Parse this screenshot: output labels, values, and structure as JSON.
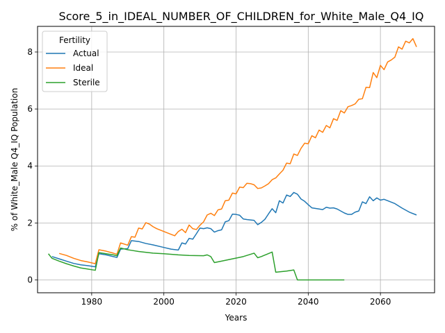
{
  "chart_data": {
    "type": "line",
    "title": "Score_5_in_IDEAL_NUMBER_OF_CHILDREN_for_White_Male_Q4_IQ",
    "xlabel": "Years",
    "ylabel": "% of White_Male Q4_IQ Population",
    "xlim": [
      1965,
      2075
    ],
    "ylim": [
      -0.45,
      8.9
    ],
    "xticks": [
      1980,
      2000,
      2020,
      2040,
      2060
    ],
    "yticks": [
      0,
      2,
      4,
      6,
      8
    ],
    "grid": true,
    "legend": {
      "title": "Fertility",
      "placement": "top-left"
    },
    "series": [
      {
        "name": "Actual",
        "color": "#1f77b4",
        "points": [
          [
            1969,
            0.82
          ],
          [
            1971,
            0.74
          ],
          [
            1973,
            0.66
          ],
          [
            1975,
            0.58
          ],
          [
            1977,
            0.53
          ],
          [
            1979,
            0.5
          ],
          [
            1981,
            0.46
          ],
          [
            1982,
            0.92
          ],
          [
            1984,
            0.88
          ],
          [
            1986,
            0.82
          ],
          [
            1987,
            0.79
          ],
          [
            1988,
            1.08
          ],
          [
            1990,
            1.1
          ],
          [
            1991,
            1.38
          ],
          [
            1993,
            1.35
          ],
          [
            1995,
            1.28
          ],
          [
            1997,
            1.23
          ],
          [
            2000,
            1.14
          ],
          [
            2002,
            1.08
          ],
          [
            2004,
            1.05
          ],
          [
            2005,
            1.3
          ],
          [
            2006,
            1.26
          ],
          [
            2007,
            1.46
          ],
          [
            2008,
            1.43
          ],
          [
            2009,
            1.62
          ],
          [
            2010,
            1.82
          ],
          [
            2011,
            1.8
          ],
          [
            2012,
            1.83
          ],
          [
            2013,
            1.8
          ],
          [
            2014,
            1.68
          ],
          [
            2015,
            1.73
          ],
          [
            2016,
            1.76
          ],
          [
            2017,
            2.04
          ],
          [
            2018,
            2.08
          ],
          [
            2019,
            2.31
          ],
          [
            2020,
            2.3
          ],
          [
            2021,
            2.27
          ],
          [
            2022,
            2.14
          ],
          [
            2023,
            2.12
          ],
          [
            2025,
            2.09
          ],
          [
            2026,
            1.94
          ],
          [
            2027,
            2.02
          ],
          [
            2028,
            2.13
          ],
          [
            2029,
            2.32
          ],
          [
            2030,
            2.5
          ],
          [
            2031,
            2.36
          ],
          [
            2032,
            2.78
          ],
          [
            2033,
            2.7
          ],
          [
            2034,
            2.98
          ],
          [
            2035,
            2.93
          ],
          [
            2036,
            3.07
          ],
          [
            2037,
            3.01
          ],
          [
            2038,
            2.84
          ],
          [
            2039,
            2.76
          ],
          [
            2040,
            2.64
          ],
          [
            2041,
            2.53
          ],
          [
            2043,
            2.49
          ],
          [
            2044,
            2.47
          ],
          [
            2045,
            2.55
          ],
          [
            2046,
            2.52
          ],
          [
            2047,
            2.53
          ],
          [
            2048,
            2.49
          ],
          [
            2049,
            2.42
          ],
          [
            2050,
            2.35
          ],
          [
            2051,
            2.3
          ],
          [
            2052,
            2.3
          ],
          [
            2053,
            2.38
          ],
          [
            2054,
            2.42
          ],
          [
            2055,
            2.74
          ],
          [
            2056,
            2.68
          ],
          [
            2057,
            2.92
          ],
          [
            2058,
            2.78
          ],
          [
            2059,
            2.88
          ],
          [
            2060,
            2.8
          ],
          [
            2061,
            2.83
          ],
          [
            2062,
            2.78
          ],
          [
            2064,
            2.68
          ],
          [
            2066,
            2.52
          ],
          [
            2068,
            2.38
          ],
          [
            2070,
            2.28
          ]
        ]
      },
      {
        "name": "Ideal",
        "color": "#ff7f0e",
        "points": [
          [
            1971,
            0.93
          ],
          [
            1973,
            0.86
          ],
          [
            1975,
            0.76
          ],
          [
            1977,
            0.68
          ],
          [
            1979,
            0.63
          ],
          [
            1981,
            0.57
          ],
          [
            1982,
            1.06
          ],
          [
            1984,
            1.01
          ],
          [
            1986,
            0.94
          ],
          [
            1987,
            0.9
          ],
          [
            1988,
            1.3
          ],
          [
            1990,
            1.22
          ],
          [
            1991,
            1.52
          ],
          [
            1992,
            1.5
          ],
          [
            1993,
            1.82
          ],
          [
            1994,
            1.79
          ],
          [
            1995,
            2.01
          ],
          [
            1996,
            1.96
          ],
          [
            1997,
            1.87
          ],
          [
            1998,
            1.8
          ],
          [
            2000,
            1.7
          ],
          [
            2002,
            1.6
          ],
          [
            2003,
            1.55
          ],
          [
            2004,
            1.7
          ],
          [
            2005,
            1.78
          ],
          [
            2006,
            1.66
          ],
          [
            2007,
            1.93
          ],
          [
            2008,
            1.8
          ],
          [
            2009,
            1.77
          ],
          [
            2010,
            1.92
          ],
          [
            2011,
            2.04
          ],
          [
            2012,
            2.28
          ],
          [
            2013,
            2.34
          ],
          [
            2014,
            2.26
          ],
          [
            2015,
            2.46
          ],
          [
            2016,
            2.49
          ],
          [
            2017,
            2.78
          ],
          [
            2018,
            2.8
          ],
          [
            2019,
            3.05
          ],
          [
            2020,
            3.02
          ],
          [
            2021,
            3.26
          ],
          [
            2022,
            3.24
          ],
          [
            2023,
            3.39
          ],
          [
            2024,
            3.38
          ],
          [
            2025,
            3.34
          ],
          [
            2026,
            3.21
          ],
          [
            2027,
            3.23
          ],
          [
            2028,
            3.3
          ],
          [
            2029,
            3.38
          ],
          [
            2030,
            3.52
          ],
          [
            2031,
            3.58
          ],
          [
            2032,
            3.72
          ],
          [
            2033,
            3.85
          ],
          [
            2034,
            4.1
          ],
          [
            2035,
            4.08
          ],
          [
            2036,
            4.42
          ],
          [
            2037,
            4.37
          ],
          [
            2038,
            4.62
          ],
          [
            2039,
            4.8
          ],
          [
            2040,
            4.78
          ],
          [
            2041,
            5.06
          ],
          [
            2042,
            4.99
          ],
          [
            2043,
            5.26
          ],
          [
            2044,
            5.18
          ],
          [
            2045,
            5.42
          ],
          [
            2046,
            5.34
          ],
          [
            2047,
            5.66
          ],
          [
            2048,
            5.6
          ],
          [
            2049,
            5.94
          ],
          [
            2050,
            5.86
          ],
          [
            2051,
            6.08
          ],
          [
            2052,
            6.12
          ],
          [
            2053,
            6.18
          ],
          [
            2054,
            6.34
          ],
          [
            2055,
            6.36
          ],
          [
            2056,
            6.76
          ],
          [
            2057,
            6.75
          ],
          [
            2058,
            7.28
          ],
          [
            2059,
            7.1
          ],
          [
            2060,
            7.53
          ],
          [
            2061,
            7.38
          ],
          [
            2062,
            7.65
          ],
          [
            2063,
            7.72
          ],
          [
            2064,
            7.82
          ],
          [
            2065,
            8.18
          ],
          [
            2066,
            8.1
          ],
          [
            2067,
            8.38
          ],
          [
            2068,
            8.32
          ],
          [
            2069,
            8.47
          ],
          [
            2070,
            8.18
          ]
        ]
      },
      {
        "name": "Sterile",
        "color": "#2ca02c",
        "points": [
          [
            1968,
            0.92
          ],
          [
            1969,
            0.76
          ],
          [
            1971,
            0.66
          ],
          [
            1973,
            0.57
          ],
          [
            1975,
            0.49
          ],
          [
            1977,
            0.42
          ],
          [
            1979,
            0.38
          ],
          [
            1981,
            0.34
          ],
          [
            1982,
            0.96
          ],
          [
            1984,
            0.92
          ],
          [
            1986,
            0.88
          ],
          [
            1987,
            0.85
          ],
          [
            1988,
            1.12
          ],
          [
            1990,
            1.06
          ],
          [
            1991,
            1.04
          ],
          [
            1993,
            1.0
          ],
          [
            1997,
            0.94
          ],
          [
            2000,
            0.92
          ],
          [
            2004,
            0.88
          ],
          [
            2007,
            0.86
          ],
          [
            2011,
            0.85
          ],
          [
            2012,
            0.88
          ],
          [
            2013,
            0.82
          ],
          [
            2014,
            0.61
          ],
          [
            2016,
            0.66
          ],
          [
            2019,
            0.74
          ],
          [
            2022,
            0.82
          ],
          [
            2025,
            0.94
          ],
          [
            2026,
            0.78
          ],
          [
            2027,
            0.82
          ],
          [
            2030,
            0.98
          ],
          [
            2031,
            0.27
          ],
          [
            2034,
            0.31
          ],
          [
            2036,
            0.35
          ],
          [
            2037,
            0.0
          ],
          [
            2050,
            0.0
          ]
        ]
      }
    ]
  }
}
